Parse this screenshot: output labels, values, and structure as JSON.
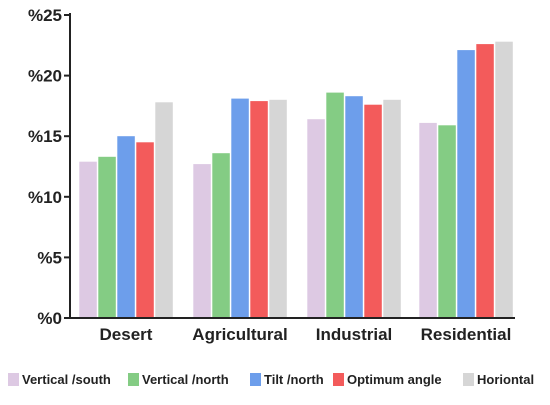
{
  "chart_data": {
    "type": "bar",
    "title": "",
    "xlabel": "",
    "ylabel": "",
    "categories": [
      "Desert",
      "Agricultural",
      "Industrial",
      "Residential"
    ],
    "series": [
      {
        "name": "Vertical /south",
        "color": "#ddc9e3",
        "values": [
          12.9,
          12.7,
          16.4,
          16.1
        ]
      },
      {
        "name": "Vertical /north",
        "color": "#84cc84",
        "values": [
          13.3,
          13.6,
          18.6,
          15.9
        ]
      },
      {
        "name": "Tilt /north",
        "color": "#6d9eeb",
        "values": [
          15.0,
          18.1,
          18.3,
          22.1
        ]
      },
      {
        "name": "Optimum angle",
        "color": "#f35b5b",
        "values": [
          14.5,
          17.9,
          17.6,
          22.6
        ]
      },
      {
        "name": "Horiontal",
        "color": "#d6d6d6",
        "values": [
          17.8,
          18.0,
          18.0,
          22.8
        ]
      }
    ],
    "ylim": [
      0,
      25
    ],
    "yticks": [
      0,
      5,
      10,
      15,
      20,
      25
    ],
    "ytick_labels": [
      "%0",
      "%5",
      "%10",
      "%15",
      "%20",
      "%25"
    ],
    "grid": false,
    "legend_position": "bottom"
  }
}
